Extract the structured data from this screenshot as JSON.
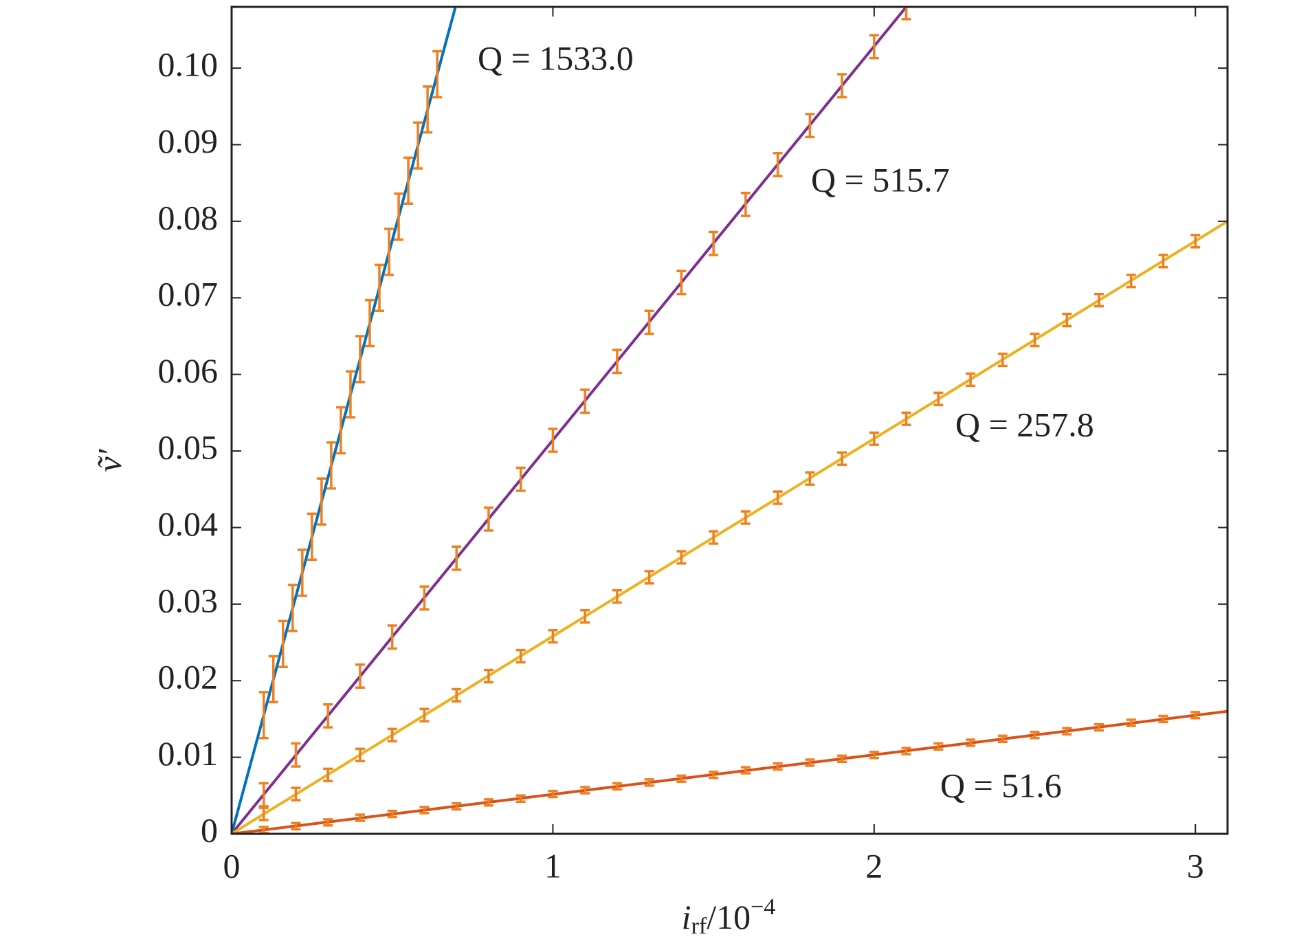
{
  "chart_data": {
    "type": "errorbar",
    "ylabel": "ṽ′",
    "xlabel": {
      "base": "i",
      "sub": "rf",
      "mid": "/10",
      "sup": "−4"
    },
    "xlim": [
      0,
      3.1
    ],
    "ylim": [
      0,
      0.108
    ],
    "xticks": [
      0,
      1,
      2,
      3
    ],
    "yticks": [
      0,
      0.01,
      0.02,
      0.03,
      0.04,
      0.05,
      0.06,
      0.07,
      0.08,
      0.09,
      {
        "value": 0.1,
        "label": "0.10"
      }
    ],
    "error_color": "#f07f1e",
    "series": [
      {
        "name": "Q = 1533.0",
        "color": "#0072bd",
        "fit_x": [
          0,
          0.7
        ],
        "fit_y": [
          0,
          0.1085
        ],
        "x": [
          0.1,
          0.13,
          0.16,
          0.19,
          0.22,
          0.25,
          0.28,
          0.31,
          0.34,
          0.37,
          0.4,
          0.43,
          0.46,
          0.49,
          0.52,
          0.55,
          0.58,
          0.61,
          0.64
        ],
        "values": [
          0.0155,
          0.0202,
          0.0248,
          0.0295,
          0.0341,
          0.0388,
          0.0434,
          0.0481,
          0.0527,
          0.0574,
          0.062,
          0.0667,
          0.0713,
          0.076,
          0.0806,
          0.0853,
          0.0899,
          0.0946,
          0.0992
        ],
        "errors": [
          0.003,
          0.003,
          0.003,
          0.003,
          0.003,
          0.003,
          0.003,
          0.003,
          0.003,
          0.003,
          0.003,
          0.003,
          0.003,
          0.003,
          0.003,
          0.003,
          0.003,
          0.003,
          0.003
        ]
      },
      {
        "name": "Q = 515.7",
        "color": "#7e2f8e",
        "fit_x": [
          0,
          2.1
        ],
        "fit_y": [
          0,
          0.108
        ],
        "x": [
          0.1,
          0.2,
          0.3,
          0.4,
          0.5,
          0.6,
          0.7,
          0.8,
          0.9,
          1.0,
          1.1,
          1.2,
          1.3,
          1.4,
          1.5,
          1.6,
          1.7,
          1.8,
          1.9,
          2.0,
          2.1
        ],
        "values": [
          0.0051,
          0.0103,
          0.0154,
          0.0206,
          0.0257,
          0.0308,
          0.036,
          0.0411,
          0.0463,
          0.0514,
          0.0565,
          0.0617,
          0.0668,
          0.072,
          0.0771,
          0.0822,
          0.0874,
          0.0925,
          0.0977,
          0.1028,
          0.1079
        ],
        "errors": [
          0.0015,
          0.0015,
          0.0015,
          0.0015,
          0.0015,
          0.0015,
          0.0015,
          0.0015,
          0.0015,
          0.0015,
          0.0015,
          0.0015,
          0.0015,
          0.0015,
          0.0015,
          0.0015,
          0.0015,
          0.0015,
          0.0015,
          0.0015,
          0.0015
        ]
      },
      {
        "name": "Q = 257.8",
        "color": "#edb120",
        "fit_x": [
          0,
          3.1
        ],
        "fit_y": [
          0,
          0.08
        ],
        "x": [
          0.1,
          0.2,
          0.3,
          0.4,
          0.5,
          0.6,
          0.7,
          0.8,
          0.9,
          1.0,
          1.1,
          1.2,
          1.3,
          1.4,
          1.5,
          1.6,
          1.7,
          1.8,
          1.9,
          2.0,
          2.1,
          2.2,
          2.3,
          2.4,
          2.5,
          2.6,
          2.7,
          2.8,
          2.9,
          3.0
        ],
        "values": [
          0.0026,
          0.0052,
          0.0077,
          0.0103,
          0.0129,
          0.0155,
          0.0181,
          0.0206,
          0.0232,
          0.0258,
          0.0284,
          0.031,
          0.0335,
          0.0361,
          0.0387,
          0.0413,
          0.0439,
          0.0464,
          0.049,
          0.0516,
          0.0542,
          0.0568,
          0.0593,
          0.0619,
          0.0645,
          0.0671,
          0.0697,
          0.0722,
          0.0748,
          0.0774
        ],
        "errors": [
          0.0008,
          0.0008,
          0.0008,
          0.0008,
          0.0008,
          0.0008,
          0.0008,
          0.0008,
          0.0008,
          0.0008,
          0.0008,
          0.0008,
          0.0008,
          0.0008,
          0.0008,
          0.0008,
          0.0008,
          0.0008,
          0.0008,
          0.0008,
          0.0008,
          0.0008,
          0.0008,
          0.0008,
          0.0008,
          0.0008,
          0.0008,
          0.0008,
          0.0008,
          0.0008
        ]
      },
      {
        "name": "Q = 51.6",
        "color": "#d95319",
        "fit_x": [
          0,
          3.1
        ],
        "fit_y": [
          0,
          0.016
        ],
        "x": [
          0.1,
          0.2,
          0.3,
          0.4,
          0.5,
          0.6,
          0.7,
          0.8,
          0.9,
          1.0,
          1.1,
          1.2,
          1.3,
          1.4,
          1.5,
          1.6,
          1.7,
          1.8,
          1.9,
          2.0,
          2.1,
          2.2,
          2.3,
          2.4,
          2.5,
          2.6,
          2.7,
          2.8,
          2.9,
          3.0
        ],
        "values": [
          0.0005,
          0.001,
          0.0015,
          0.0021,
          0.0026,
          0.0031,
          0.0036,
          0.0041,
          0.0046,
          0.0052,
          0.0057,
          0.0062,
          0.0067,
          0.0072,
          0.0077,
          0.0083,
          0.0088,
          0.0093,
          0.0098,
          0.0103,
          0.0108,
          0.0114,
          0.0119,
          0.0124,
          0.0129,
          0.0134,
          0.0139,
          0.0145,
          0.015,
          0.0155
        ],
        "errors": [
          0.0004,
          0.0004,
          0.0004,
          0.0004,
          0.0004,
          0.0004,
          0.0004,
          0.0004,
          0.0004,
          0.0004,
          0.0004,
          0.0004,
          0.0004,
          0.0004,
          0.0004,
          0.0004,
          0.0004,
          0.0004,
          0.0004,
          0.0004,
          0.0004,
          0.0004,
          0.0004,
          0.0004,
          0.0004,
          0.0004,
          0.0004,
          0.0004,
          0.0004,
          0.0004
        ]
      }
    ]
  }
}
